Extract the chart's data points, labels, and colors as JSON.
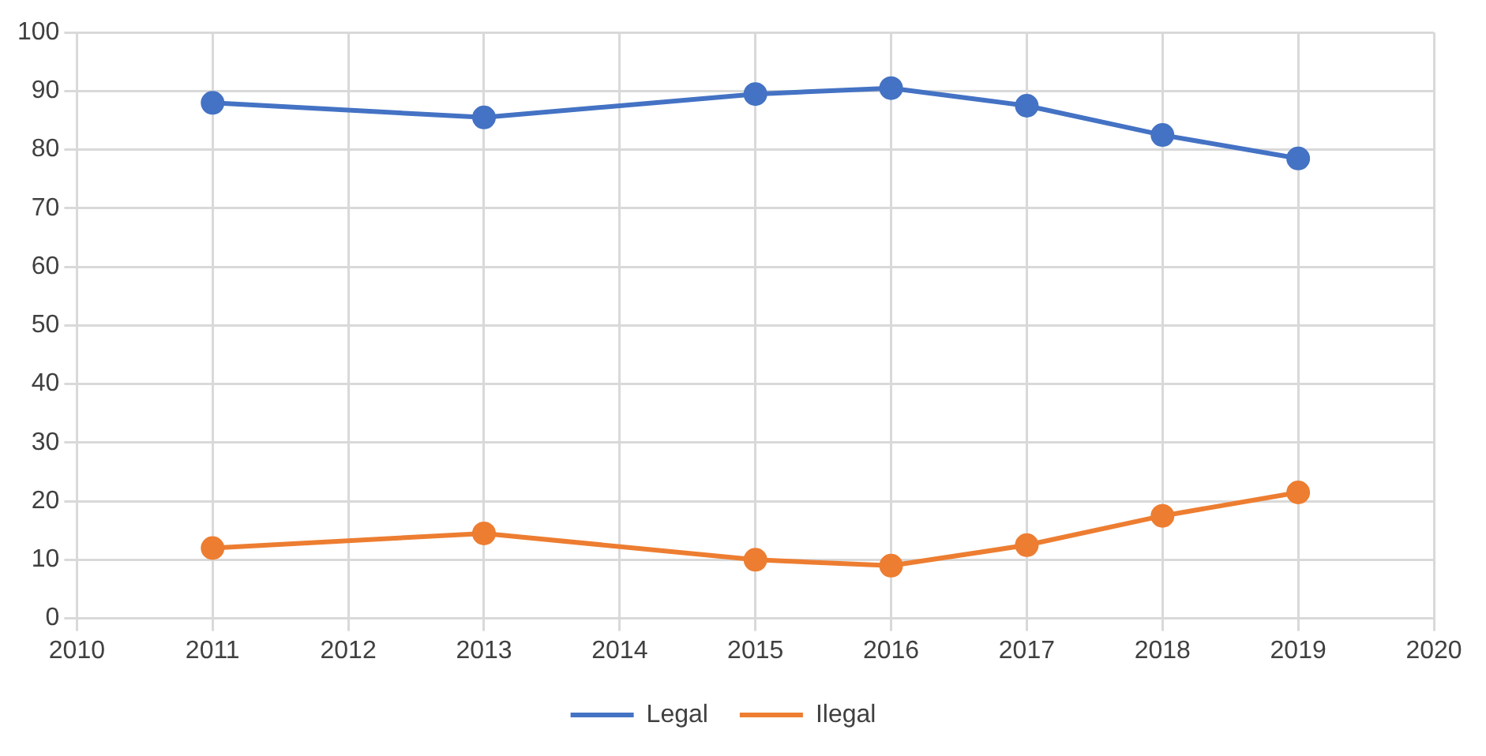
{
  "chart_data": {
    "type": "line",
    "x": [
      2011,
      2013,
      2015,
      2016,
      2017,
      2018,
      2019
    ],
    "series": [
      {
        "name": "Legal",
        "color": "#4472c4",
        "values": [
          88,
          85.5,
          89.5,
          90.5,
          87.5,
          82.5,
          78.5
        ]
      },
      {
        "name": "Ilegal",
        "color": "#ed7d31",
        "values": [
          12,
          14.5,
          10,
          9,
          12.5,
          17.5,
          21.5
        ]
      }
    ],
    "xlim": [
      2010,
      2020
    ],
    "xticks": [
      2010,
      2011,
      2012,
      2013,
      2014,
      2015,
      2016,
      2017,
      2018,
      2019,
      2020
    ],
    "ylim": [
      0,
      100
    ],
    "yticks": [
      0,
      10,
      20,
      30,
      40,
      50,
      60,
      70,
      80,
      90,
      100
    ],
    "grid": true,
    "legend": "bottom",
    "marker": "circle",
    "line_style": "solid"
  }
}
